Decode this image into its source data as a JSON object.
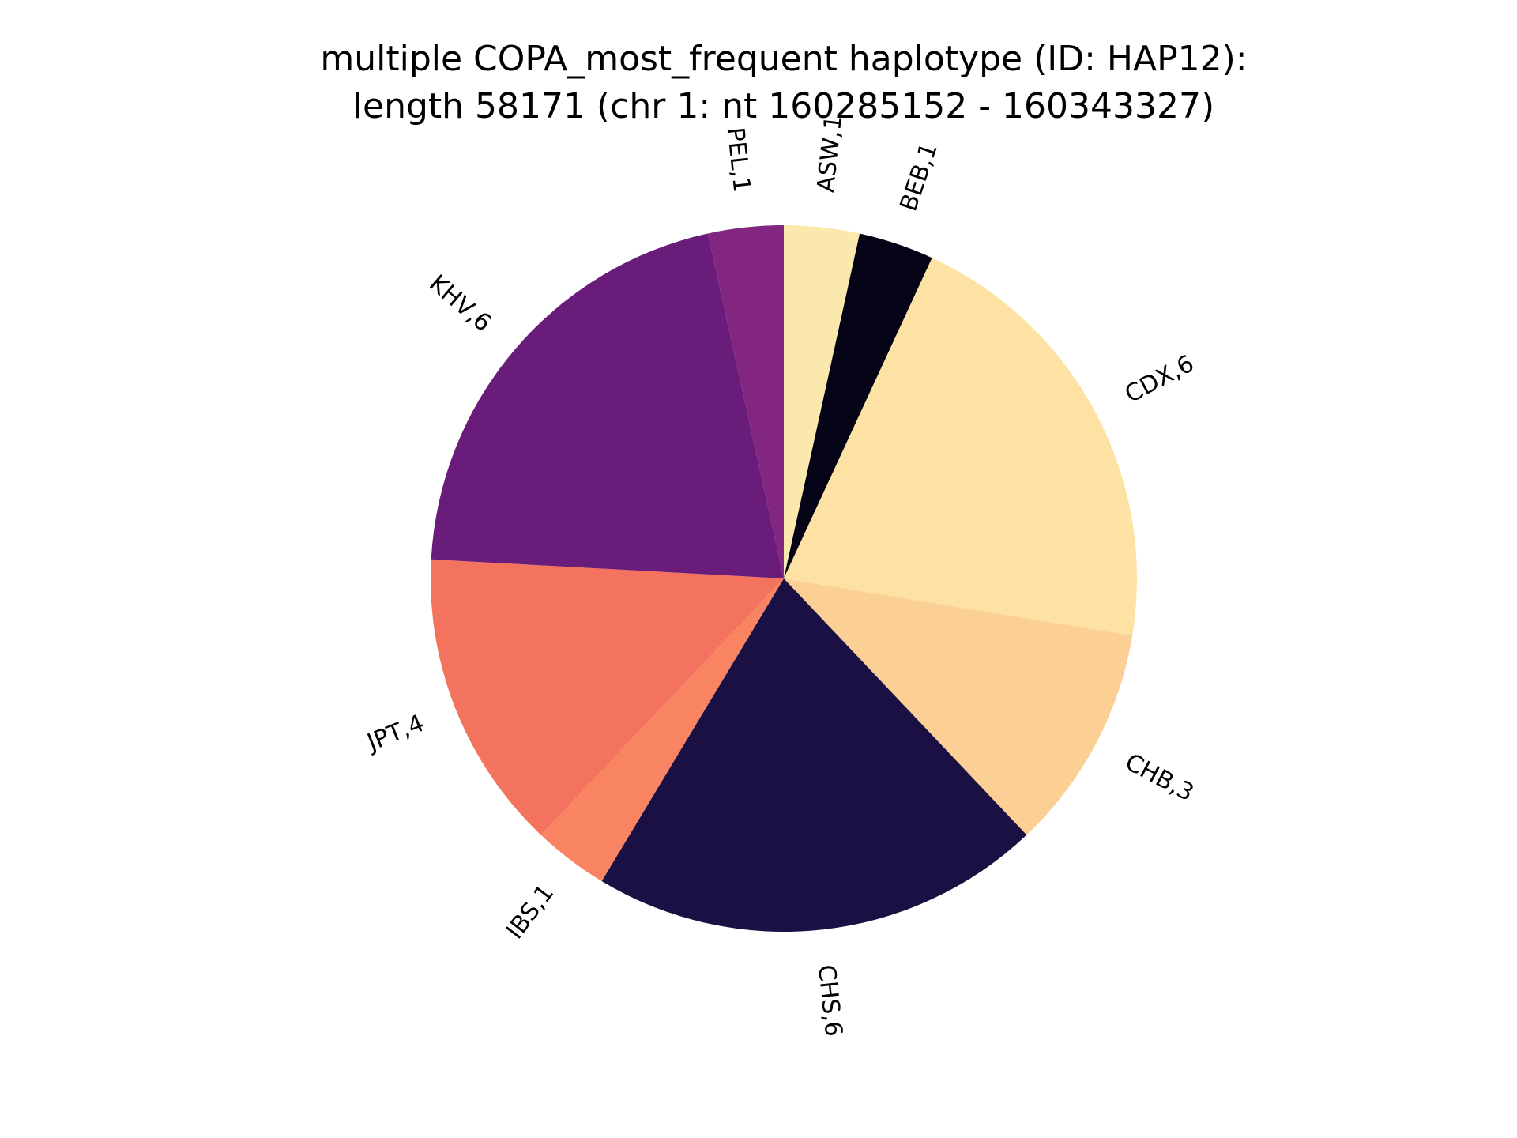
{
  "chart_data": {
    "type": "pie",
    "title": "multiple COPA_most_frequent haplotype (ID: HAP12):",
    "subtitle": "length 58171 (chr 1: nt 160285152 - 160343327)",
    "start_angle_deg": 90,
    "direction": "clockwise",
    "slices": [
      {
        "label": "ASW,1",
        "value": 1,
        "color": "#fbe8ad"
      },
      {
        "label": "BEB,1",
        "value": 1,
        "color": "#050416"
      },
      {
        "label": "CDX,6",
        "value": 6,
        "color": "#fde2a4"
      },
      {
        "label": "CHB,3",
        "value": 3,
        "color": "#fcd095"
      },
      {
        "label": "CHS,6",
        "value": 6,
        "color": "#1b1044"
      },
      {
        "label": "IBS,1",
        "value": 1,
        "color": "#f98462"
      },
      {
        "label": "JPT,4",
        "value": 4,
        "color": "#f4735e"
      },
      {
        "label": "KHV,6",
        "value": 6,
        "color": "#6a1c7b"
      },
      {
        "label": "PEL,1",
        "value": 1,
        "color": "#822681"
      }
    ]
  }
}
